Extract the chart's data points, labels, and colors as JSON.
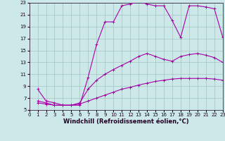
{
  "background_color": "#cce8e8",
  "grid_color": "#99bbbb",
  "line_color": "#aa00aa",
  "xlabel": "Windchill (Refroidissement éolien,°C)",
  "xlim": [
    0,
    23
  ],
  "ylim": [
    5,
    23
  ],
  "yticks": [
    5,
    7,
    9,
    11,
    13,
    15,
    17,
    19,
    21,
    23
  ],
  "xticks": [
    0,
    1,
    2,
    3,
    4,
    5,
    6,
    7,
    8,
    9,
    10,
    11,
    12,
    13,
    14,
    15,
    16,
    17,
    18,
    19,
    20,
    21,
    22,
    23
  ],
  "curve1_x": [
    1,
    2,
    3,
    4,
    5,
    6,
    7,
    8,
    9,
    10,
    11,
    12,
    13,
    14,
    15,
    16,
    17,
    18,
    19,
    20,
    21,
    22,
    23
  ],
  "curve1_y": [
    8.5,
    6.5,
    6.2,
    5.8,
    5.8,
    5.8,
    10.5,
    16.0,
    19.8,
    19.8,
    22.5,
    22.8,
    23.2,
    22.8,
    22.5,
    22.5,
    20.0,
    17.2,
    22.5,
    22.5,
    22.3,
    22.0,
    17.2
  ],
  "curve2_x": [
    1,
    2,
    3,
    4,
    5,
    6,
    7,
    8,
    9,
    10,
    11,
    12,
    13,
    14,
    15,
    16,
    17,
    18,
    19,
    20,
    21,
    22,
    23
  ],
  "curve2_y": [
    6.5,
    6.2,
    5.8,
    5.8,
    5.8,
    6.2,
    8.5,
    10.0,
    11.0,
    11.8,
    12.5,
    13.2,
    14.0,
    14.5,
    14.0,
    13.5,
    13.2,
    14.0,
    14.3,
    14.5,
    14.2,
    13.8,
    13.0
  ],
  "curve3_x": [
    1,
    2,
    3,
    4,
    5,
    6,
    7,
    8,
    9,
    10,
    11,
    12,
    13,
    14,
    15,
    16,
    17,
    18,
    19,
    20,
    21,
    22,
    23
  ],
  "curve3_y": [
    6.2,
    6.0,
    5.8,
    5.8,
    5.8,
    6.0,
    6.5,
    7.0,
    7.5,
    8.0,
    8.5,
    8.8,
    9.2,
    9.5,
    9.8,
    10.0,
    10.2,
    10.3,
    10.3,
    10.3,
    10.3,
    10.2,
    10.0
  ],
  "xlabel_fontsize": 6,
  "tick_fontsize": 5,
  "linewidth": 0.8,
  "markersize": 2.5
}
